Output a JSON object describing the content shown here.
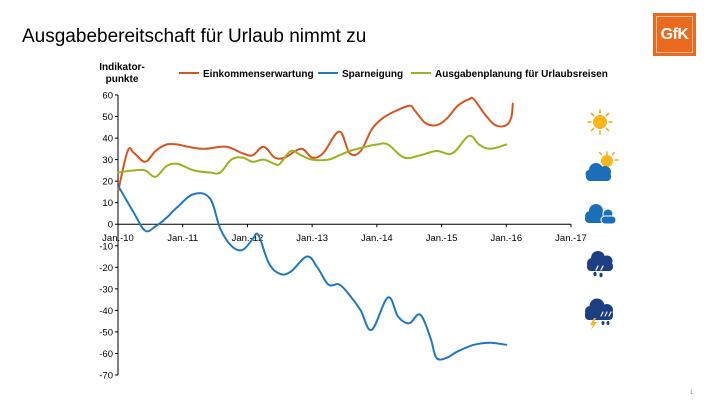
{
  "slide": {
    "title": "Ausgabebereitschaft für Urlaub nimmt zu",
    "logo_text": "GfK",
    "page_number": "1"
  },
  "colors": {
    "einkommen": "#d9531e",
    "spar": "#1f78c1",
    "ausgaben": "#9bb21d",
    "logo": "#ea6a1f"
  },
  "weather_icons": [
    "sun-icon",
    "sun-cloud-icon",
    "cloud-icon",
    "rain-cloud-icon",
    "storm-cloud-icon"
  ],
  "chart_data": {
    "type": "line",
    "ylabel": "Indikator-\npunkte",
    "xlabel": "",
    "ylim": [
      -70,
      60
    ],
    "yticks": [
      60,
      50,
      40,
      30,
      20,
      10,
      0,
      -10,
      -20,
      -30,
      -40,
      -50,
      -60,
      -70
    ],
    "xlim": [
      2010.0,
      2017.0
    ],
    "xticks": [
      {
        "x": 2010,
        "label": "Jan.-10"
      },
      {
        "x": 2011,
        "label": "Jan.-11"
      },
      {
        "x": 2012,
        "label": "Jan.-12"
      },
      {
        "x": 2013,
        "label": "Jan.-13"
      },
      {
        "x": 2014,
        "label": "Jan.-14"
      },
      {
        "x": 2015,
        "label": "Jan.-15"
      },
      {
        "x": 2016,
        "label": "Jan.-16"
      },
      {
        "x": 2017,
        "label": "Jan.-17"
      }
    ],
    "legend_position": "top",
    "series": [
      {
        "name": "Einkommenserwartung",
        "color": "#d9531e",
        "points": [
          [
            2010.0,
            15
          ],
          [
            2010.15,
            34
          ],
          [
            2010.25,
            33
          ],
          [
            2010.42,
            29
          ],
          [
            2010.58,
            34
          ],
          [
            2010.75,
            37
          ],
          [
            2010.92,
            37
          ],
          [
            2011.08,
            36
          ],
          [
            2011.33,
            35
          ],
          [
            2011.67,
            36
          ],
          [
            2011.92,
            33
          ],
          [
            2012.08,
            32
          ],
          [
            2012.25,
            36
          ],
          [
            2012.42,
            31
          ],
          [
            2012.58,
            31
          ],
          [
            2012.83,
            35
          ],
          [
            2013.0,
            31
          ],
          [
            2013.17,
            33
          ],
          [
            2013.42,
            43
          ],
          [
            2013.58,
            33
          ],
          [
            2013.75,
            34
          ],
          [
            2013.92,
            44
          ],
          [
            2014.08,
            49
          ],
          [
            2014.25,
            52
          ],
          [
            2014.5,
            55
          ],
          [
            2014.58,
            53
          ],
          [
            2014.75,
            47
          ],
          [
            2014.92,
            46
          ],
          [
            2015.08,
            49
          ],
          [
            2015.25,
            55
          ],
          [
            2015.42,
            58
          ],
          [
            2015.5,
            58
          ],
          [
            2015.67,
            51
          ],
          [
            2015.83,
            46
          ],
          [
            2016.0,
            46
          ],
          [
            2016.08,
            50
          ],
          [
            2016.1,
            56
          ]
        ]
      },
      {
        "name": "Sparneigung",
        "color": "#1f78c1",
        "points": [
          [
            2010.0,
            18
          ],
          [
            2010.25,
            5
          ],
          [
            2010.42,
            -3
          ],
          [
            2010.58,
            -1
          ],
          [
            2010.75,
            3
          ],
          [
            2010.92,
            8
          ],
          [
            2011.17,
            14
          ],
          [
            2011.42,
            12
          ],
          [
            2011.58,
            -2
          ],
          [
            2011.75,
            -10
          ],
          [
            2011.92,
            -12
          ],
          [
            2012.08,
            -7
          ],
          [
            2012.17,
            -5
          ],
          [
            2012.33,
            -18
          ],
          [
            2012.5,
            -23
          ],
          [
            2012.67,
            -22
          ],
          [
            2012.92,
            -15
          ],
          [
            2013.08,
            -20
          ],
          [
            2013.25,
            -28
          ],
          [
            2013.42,
            -28
          ],
          [
            2013.58,
            -33
          ],
          [
            2013.75,
            -40
          ],
          [
            2013.92,
            -49
          ],
          [
            2014.17,
            -34
          ],
          [
            2014.33,
            -43
          ],
          [
            2014.5,
            -46
          ],
          [
            2014.67,
            -42
          ],
          [
            2014.83,
            -53
          ],
          [
            2014.92,
            -62
          ],
          [
            2015.08,
            -62
          ],
          [
            2015.25,
            -59
          ],
          [
            2015.5,
            -56
          ],
          [
            2015.75,
            -55
          ],
          [
            2016.0,
            -56
          ]
        ]
      },
      {
        "name": "Ausgabenplanung für Urlaubsreisen",
        "color": "#9bb21d",
        "points": [
          [
            2010.0,
            24
          ],
          [
            2010.25,
            25
          ],
          [
            2010.42,
            25
          ],
          [
            2010.58,
            22
          ],
          [
            2010.75,
            27
          ],
          [
            2010.92,
            28
          ],
          [
            2011.17,
            25
          ],
          [
            2011.42,
            24
          ],
          [
            2011.58,
            24
          ],
          [
            2011.75,
            30
          ],
          [
            2011.92,
            31
          ],
          [
            2012.08,
            29
          ],
          [
            2012.25,
            30
          ],
          [
            2012.42,
            28
          ],
          [
            2012.5,
            28
          ],
          [
            2012.67,
            34
          ],
          [
            2012.83,
            32
          ],
          [
            2013.0,
            30
          ],
          [
            2013.25,
            30
          ],
          [
            2013.42,
            32
          ],
          [
            2013.58,
            34
          ],
          [
            2013.83,
            36
          ],
          [
            2014.0,
            37
          ],
          [
            2014.17,
            37
          ],
          [
            2014.42,
            31
          ],
          [
            2014.67,
            32
          ],
          [
            2014.92,
            34
          ],
          [
            2015.17,
            33
          ],
          [
            2015.42,
            41
          ],
          [
            2015.58,
            37
          ],
          [
            2015.75,
            35
          ],
          [
            2016.0,
            37
          ]
        ]
      }
    ]
  }
}
